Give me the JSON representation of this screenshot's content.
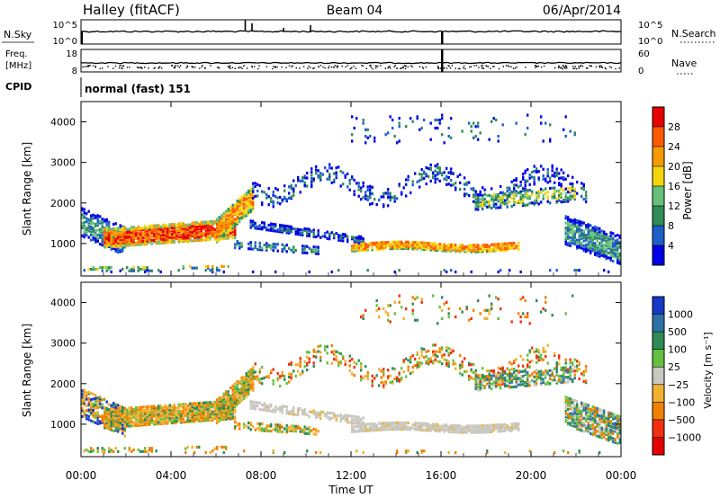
{
  "header": {
    "station": "Halley (fitACF)",
    "beam": "Beam 04",
    "date": "06/Apr/2014"
  },
  "chart_data": [
    {
      "type": "line",
      "panel": "N.Sky / N.Search",
      "left_label": "N.Sky",
      "right_label": "N.Search",
      "left_ticks": [
        "10^5",
        "10^0"
      ],
      "right_ticks": [
        "10^5",
        "10^0"
      ]
    },
    {
      "type": "scatter",
      "panel": "Freq / Nave",
      "left_label": "Freq.",
      "left_unit": "[MHz]",
      "right_label": "Nave",
      "left_ticks": [
        "18",
        "8"
      ],
      "left_range": [
        8,
        18
      ],
      "right_ticks": [
        "60",
        "0"
      ],
      "right_range": [
        0,
        60
      ]
    },
    {
      "type": "table",
      "panel": "CPID",
      "label": "CPID",
      "text": "normal (fast) 151"
    },
    {
      "type": "heatmap",
      "panel": "power",
      "ylabel": "Slant Range [km]",
      "yticks": [
        "1000",
        "2000",
        "3000",
        "4000"
      ],
      "ylim": [
        200,
        4500
      ],
      "colorbar_label": "Power [dB]",
      "colorbar_ticks": [
        "28",
        "24",
        "20",
        "16",
        "12",
        "8",
        "4"
      ],
      "colors": [
        "#0000e6",
        "#1e5fc8",
        "#2f8b57",
        "#66c07a",
        "#f4d50c",
        "#f59a00",
        "#ff5a00",
        "#e60000"
      ]
    },
    {
      "type": "heatmap",
      "panel": "velocity",
      "ylabel": "Slant Range [km]",
      "yticks": [
        "1000",
        "2000",
        "3000",
        "4000"
      ],
      "ylim": [
        200,
        4500
      ],
      "colorbar_label": "Velocity [m s⁻¹]",
      "colorbar_ticks": [
        "1000",
        "500",
        "100",
        "25",
        "−25",
        "−100",
        "−500",
        "−1000"
      ],
      "colors": [
        "#1838c8",
        "#3070a8",
        "#2e8b57",
        "#66c040",
        "#c8c8c0",
        "#f0b030",
        "#f08000",
        "#f03010",
        "#e60000"
      ],
      "xticks": [
        "00:00",
        "04:00",
        "08:00",
        "12:00",
        "16:00",
        "20:00",
        "00:00"
      ],
      "xlabel": "Time UT"
    }
  ]
}
